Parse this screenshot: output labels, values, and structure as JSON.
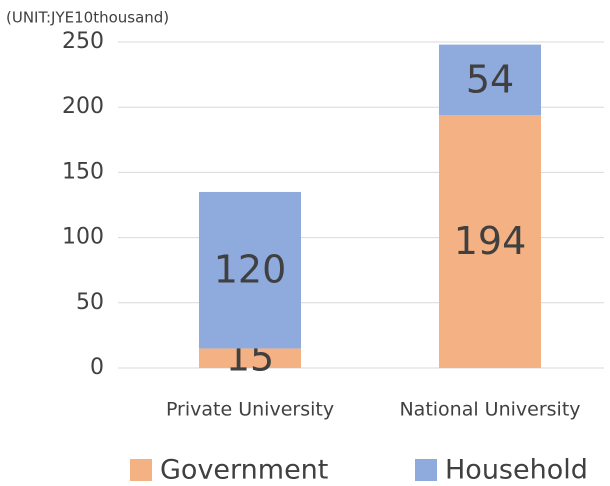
{
  "chart_data": {
    "type": "stacked_bar",
    "subtitle": "(UNIT:JYE10thousand)",
    "categories": [
      "Private University",
      "National University"
    ],
    "series": [
      {
        "name": "Government",
        "color": "#f4b183",
        "values": [
          15,
          194
        ]
      },
      {
        "name": "Household",
        "color": "#8faadc",
        "values": [
          120,
          54
        ]
      }
    ],
    "ylim": [
      0,
      250
    ],
    "yticks": [
      0,
      50,
      100,
      150,
      200,
      250
    ],
    "grid": true,
    "legend": "bottom"
  }
}
